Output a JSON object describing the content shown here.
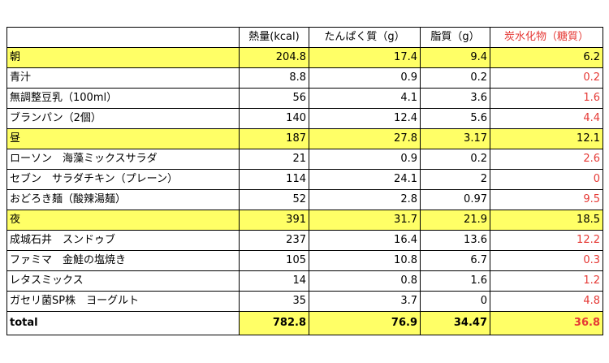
{
  "table": {
    "headers": [
      "",
      "熱量(kcal)",
      "たんぱく質（g）",
      "脂質（g）",
      "炭水化物（糖質）"
    ],
    "rows": [
      {
        "name": "朝",
        "kcal": "204.8",
        "protein": "17.4",
        "fat": "9.4",
        "carb": "6.2",
        "type": "section"
      },
      {
        "name": "青汁",
        "kcal": "8.8",
        "protein": "0.9",
        "fat": "0.2",
        "carb": "0.2",
        "type": "item"
      },
      {
        "name": "無調整豆乳（100ml）",
        "kcal": "56",
        "protein": "4.1",
        "fat": "3.6",
        "carb": "1.6",
        "type": "item"
      },
      {
        "name": "ブランパン（2個）",
        "kcal": "140",
        "protein": "12.4",
        "fat": "5.6",
        "carb": "4.4",
        "type": "item"
      },
      {
        "name": "昼",
        "kcal": "187",
        "protein": "27.8",
        "fat": "3.17",
        "carb": "12.1",
        "type": "section"
      },
      {
        "name": "ローソン　海藻ミックスサラダ",
        "kcal": "21",
        "protein": "0.9",
        "fat": "0.2",
        "carb": "2.6",
        "type": "item"
      },
      {
        "name": "セブン　サラダチキン（プレーン）",
        "kcal": "114",
        "protein": "24.1",
        "fat": "2",
        "carb": "0",
        "type": "item"
      },
      {
        "name": "おどろき麺（酸辣湯麺）",
        "kcal": "52",
        "protein": "2.8",
        "fat": "0.97",
        "carb": "9.5",
        "type": "item"
      },
      {
        "name": "夜",
        "kcal": "391",
        "protein": "31.7",
        "fat": "21.9",
        "carb": "18.5",
        "type": "section"
      },
      {
        "name": "成城石井　スンドゥブ",
        "kcal": "237",
        "protein": "16.4",
        "fat": "13.6",
        "carb": "12.2",
        "type": "item"
      },
      {
        "name": "ファミマ　金鮭の塩焼き",
        "kcal": "105",
        "protein": "10.8",
        "fat": "6.7",
        "carb": "0.3",
        "type": "item"
      },
      {
        "name": "レタスミックス",
        "kcal": "14",
        "protein": "0.8",
        "fat": "1.6",
        "carb": "1.2",
        "type": "item"
      },
      {
        "name": "ガセリ菌SP株　ヨーグルト",
        "kcal": "35",
        "protein": "3.7",
        "fat": "0",
        "carb": "4.8",
        "type": "item"
      }
    ],
    "total": {
      "name": "total",
      "kcal": "782.8",
      "protein": "76.9",
      "fat": "34.47",
      "carb": "36.8"
    }
  },
  "colors": {
    "section_highlight": "#ffff66",
    "carb_text": "#e53935",
    "border": "#000000"
  }
}
